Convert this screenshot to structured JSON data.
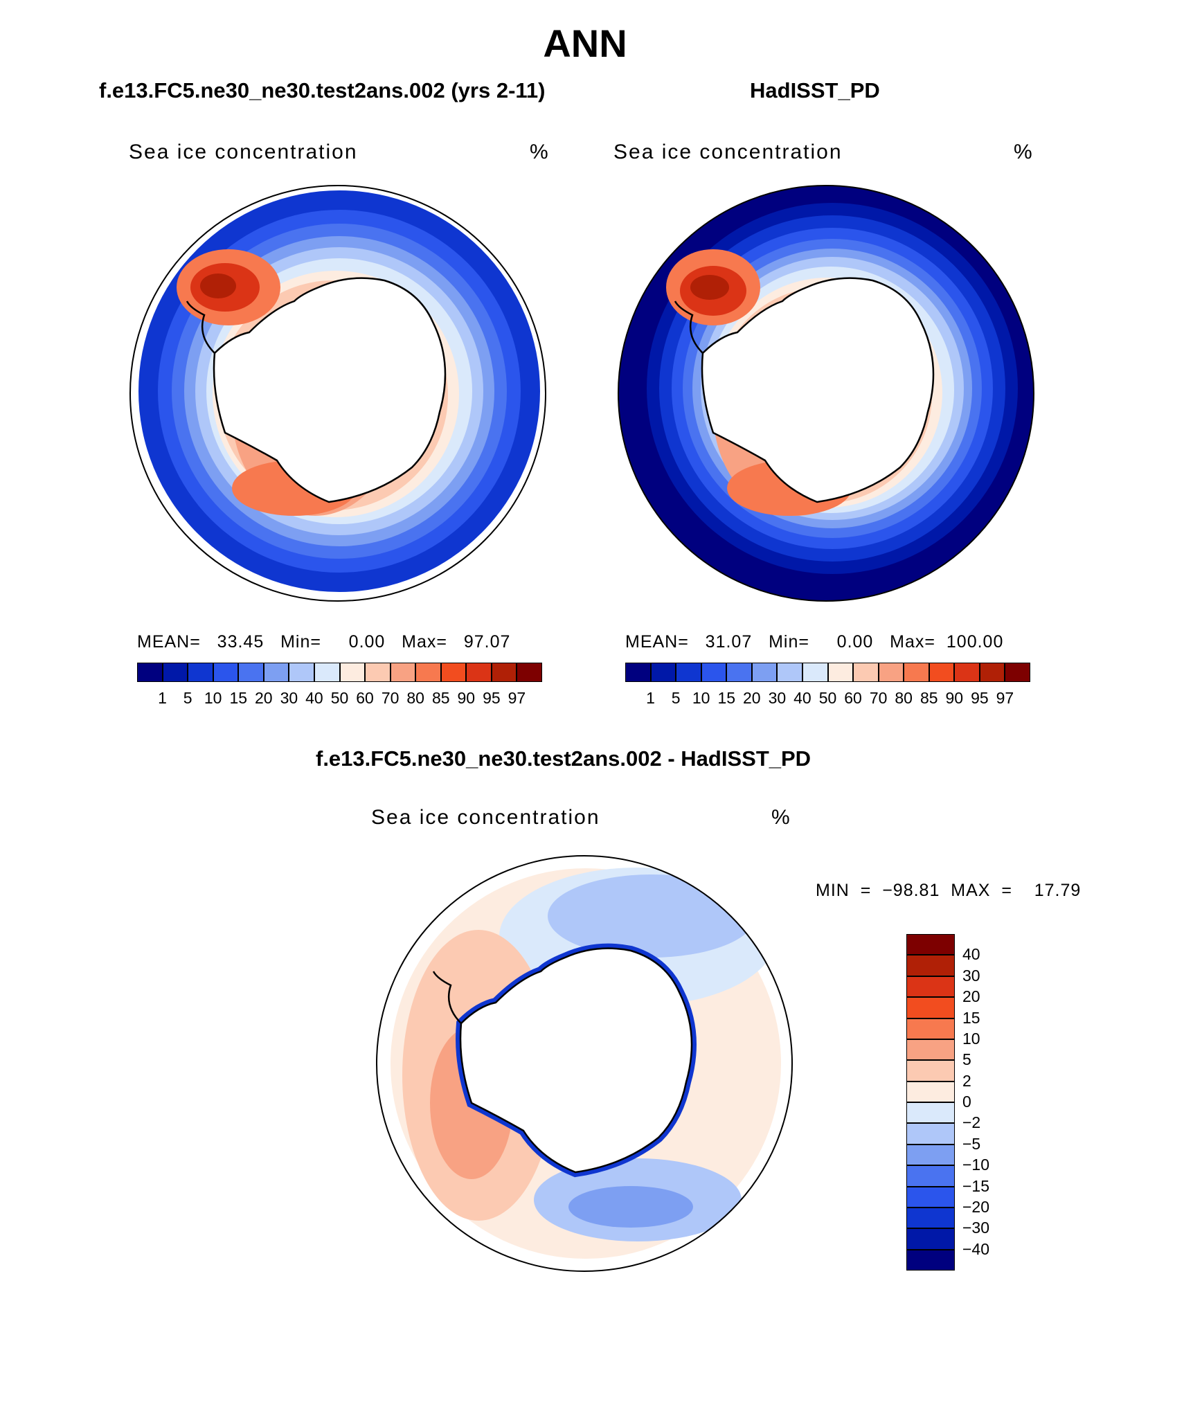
{
  "figure": {
    "title": "ANN",
    "panel_left_heading": "f.e13.FC5.ne30_ne30.test2ans.002 (yrs 2-11)",
    "panel_right_heading": "HadISST_PD",
    "diff_heading": "f.e13.FC5.ne30_ne30.test2ans.002 - HadISST_PD"
  },
  "panels": {
    "model": {
      "variable": "Sea ice concentration",
      "units": "%",
      "stats_text": "MEAN=   33.45   Min=     0.00   Max=   97.07",
      "mean": 33.45,
      "min": 0.0,
      "max": 97.07
    },
    "obs": {
      "variable": "Sea ice concentration",
      "units": "%",
      "stats_text": "MEAN=   31.07   Min=     0.00   Max=  100.00",
      "mean": 31.07,
      "min": 0.0,
      "max": 100.0
    },
    "diff": {
      "variable": "Sea ice concentration",
      "units": "%",
      "stats_text": "MIN  =  −98.81  MAX  =    17.79",
      "min": -98.81,
      "max": 17.79
    }
  },
  "colorbars": {
    "abs_levels": [
      "1",
      "5",
      "10",
      "15",
      "20",
      "30",
      "40",
      "50",
      "60",
      "70",
      "80",
      "85",
      "90",
      "95",
      "97"
    ],
    "abs_colors": [
      "#00007f",
      "#0018a8",
      "#0f36d0",
      "#2b55ec",
      "#4a73f0",
      "#7d9ff2",
      "#afc7f9",
      "#dae9fb",
      "#fdece0",
      "#fccab2",
      "#f8a283",
      "#f7794f",
      "#f24d1f",
      "#db3416",
      "#b02006",
      "#7d0000"
    ],
    "diff_levels": [
      "40",
      "30",
      "20",
      "15",
      "10",
      "5",
      "2",
      "0",
      "−2",
      "−5",
      "−10",
      "−15",
      "−20",
      "−30",
      "−40"
    ],
    "diff_colors": [
      "#7d0000",
      "#b02006",
      "#db3416",
      "#f24d1f",
      "#f7794f",
      "#f8a283",
      "#fccab2",
      "#fdece0",
      "#dae9fb",
      "#afc7f9",
      "#7d9ff2",
      "#4a73f0",
      "#2b55ec",
      "#0f36d0",
      "#0018a8",
      "#00007f"
    ]
  },
  "map_colors": {
    "land": "#ffffff",
    "coast": "#000000"
  }
}
